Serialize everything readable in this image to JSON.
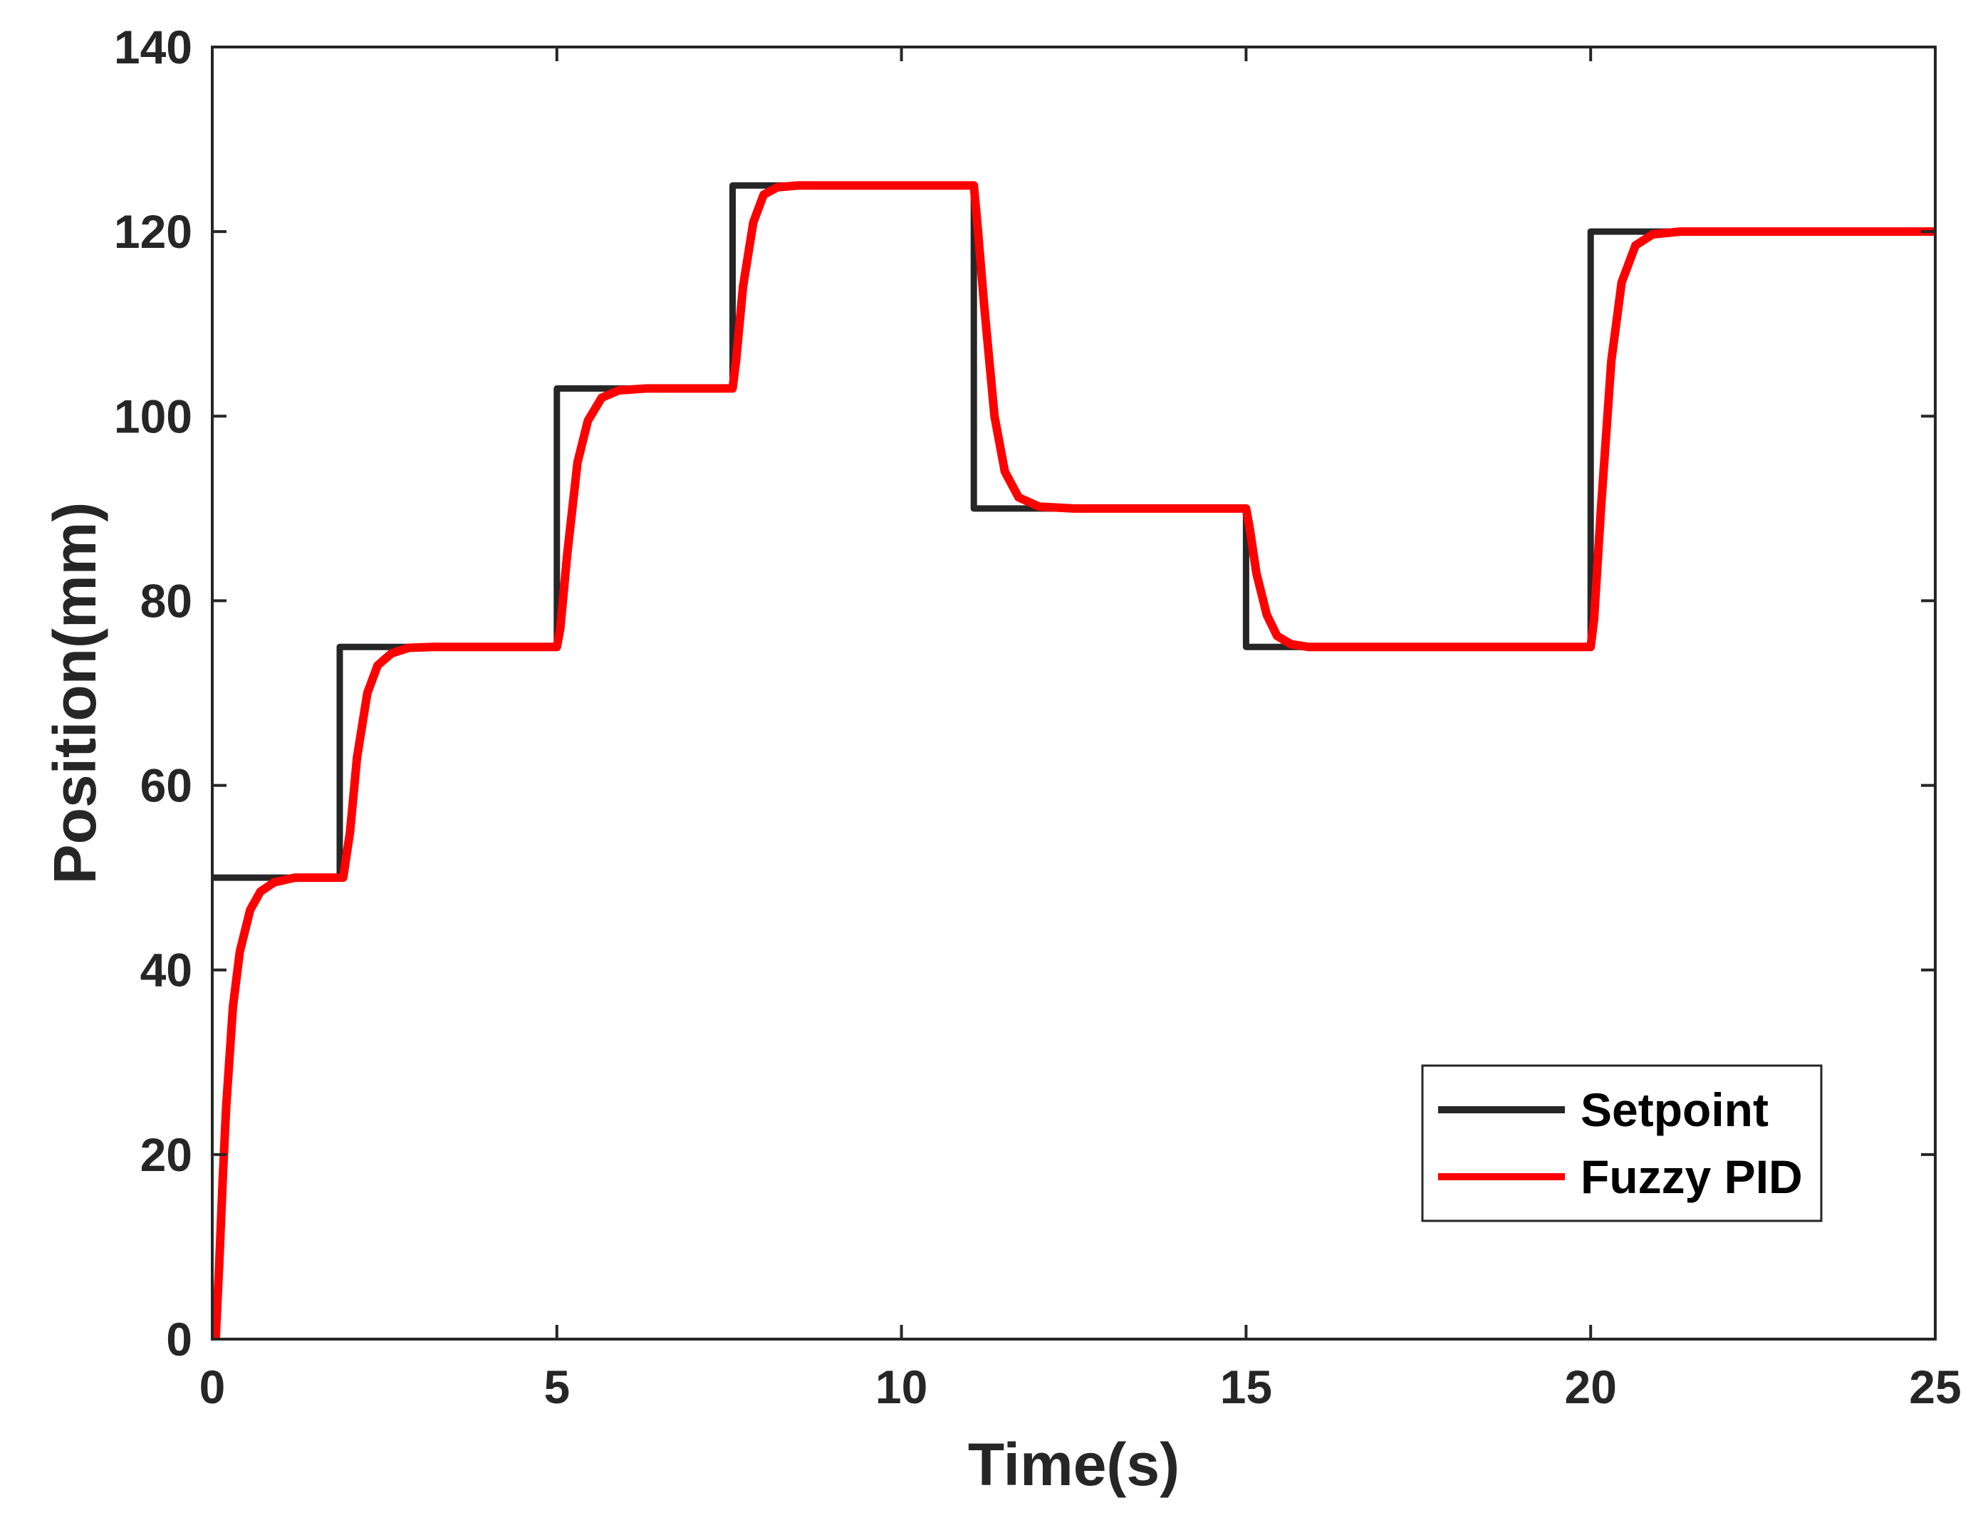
{
  "chart_data": {
    "type": "line",
    "title": "",
    "xlabel": "Time(s)",
    "ylabel": "Position(mm)",
    "xlim": [
      0,
      25
    ],
    "ylim": [
      0,
      140
    ],
    "xticks": [
      0,
      5,
      10,
      15,
      20,
      25
    ],
    "yticks": [
      0,
      20,
      40,
      60,
      80,
      100,
      120,
      140
    ],
    "xtick_labels": [
      "0",
      "5",
      "10",
      "15",
      "20",
      "25"
    ],
    "ytick_labels": [
      "0",
      "20",
      "40",
      "60",
      "80",
      "100",
      "120",
      "140"
    ],
    "grid": false,
    "legend_position": "bottom-right",
    "series": [
      {
        "name": "Setpoint",
        "color": "#262626",
        "x": [
          0,
          1.85,
          1.85,
          5.0,
          5.0,
          7.55,
          7.55,
          11.05,
          11.05,
          15.0,
          15.0,
          20.0,
          20.0,
          25.0
        ],
        "y": [
          50,
          50,
          75,
          75,
          103,
          103,
          125,
          125,
          90,
          90,
          75,
          75,
          120,
          120
        ]
      },
      {
        "name": "Fuzzy PID",
        "color": "#ff0000",
        "x": [
          0.05,
          0.1,
          0.15,
          0.2,
          0.3,
          0.4,
          0.55,
          0.7,
          0.9,
          1.2,
          1.6,
          1.9,
          2.0,
          2.1,
          2.25,
          2.4,
          2.6,
          2.85,
          3.2,
          5.0,
          5.05,
          5.15,
          5.3,
          5.45,
          5.65,
          5.9,
          6.3,
          7.55,
          7.6,
          7.7,
          7.85,
          8.0,
          8.2,
          8.5,
          9.0,
          11.05,
          11.1,
          11.2,
          11.35,
          11.5,
          11.7,
          12.0,
          12.5,
          15.0,
          15.05,
          15.15,
          15.3,
          15.45,
          15.65,
          15.9,
          16.5,
          20.0,
          20.05,
          20.15,
          20.3,
          20.45,
          20.65,
          20.9,
          21.3,
          25.0
        ],
        "y": [
          0,
          8,
          17,
          25,
          36,
          42,
          46.5,
          48.5,
          49.5,
          50,
          50,
          50,
          55,
          63,
          70,
          73,
          74.3,
          74.9,
          75,
          75,
          77,
          85,
          95,
          99.5,
          102,
          102.8,
          103,
          103,
          106,
          114,
          121,
          124,
          124.8,
          125,
          125,
          125,
          121,
          112,
          100,
          94,
          91.2,
          90.2,
          90,
          90,
          88,
          83,
          78.5,
          76.2,
          75.3,
          75,
          75,
          75,
          78,
          90,
          106,
          114.5,
          118.5,
          119.7,
          120,
          120
        ]
      }
    ]
  }
}
